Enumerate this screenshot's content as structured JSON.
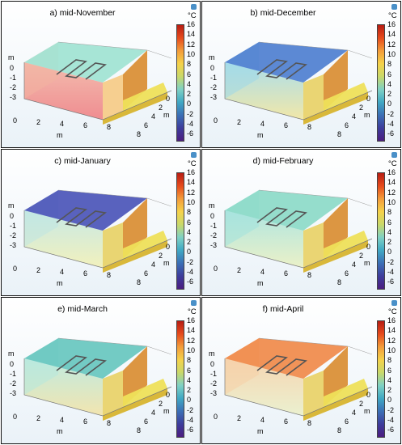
{
  "colorbar": {
    "unit": "°C",
    "ticks": [
      "16",
      "14",
      "12",
      "10",
      "8",
      "6",
      "4",
      "2",
      "0",
      "-2",
      "-4",
      "-6"
    ]
  },
  "axes": {
    "z_ticks": [
      "0",
      "-1",
      "-2",
      "-3"
    ],
    "x_ticks": [
      "0",
      "2",
      "4",
      "6",
      "8"
    ],
    "y_ticks": [
      "0",
      "2",
      "4",
      "6",
      "8"
    ],
    "unit": "m"
  },
  "panels": [
    {
      "title": "a) mid-November",
      "top_color": "#9fe3d3",
      "side_top": "#f2b2a0",
      "side_bottom": "#f07a7e",
      "front_right": "#f5cc8a"
    },
    {
      "title": "b) mid-December",
      "top_color": "#4e7fd0",
      "side_top": "#9ed9e8",
      "side_bottom": "#f2e59a",
      "front_right": "#e9d36b"
    },
    {
      "title": "c) mid-January",
      "top_color": "#4b55b8",
      "side_top": "#bfe6e2",
      "side_bottom": "#f2f0b2",
      "front_right": "#e8d36a"
    },
    {
      "title": "d) mid-February",
      "top_color": "#8cdac8",
      "side_top": "#a3e2dc",
      "side_bottom": "#eaf0bf",
      "front_right": "#e9d36b"
    },
    {
      "title": "e) mid-March",
      "top_color": "#67c7bf",
      "side_top": "#b6e8dc",
      "side_bottom": "#f3e2a2",
      "front_right": "#e9d36b"
    },
    {
      "title": "f) mid-April",
      "top_color": "#f08a4a",
      "side_top": "#f6cfa5",
      "side_bottom": "#eaf0c8",
      "front_right": "#e9d36b"
    }
  ]
}
